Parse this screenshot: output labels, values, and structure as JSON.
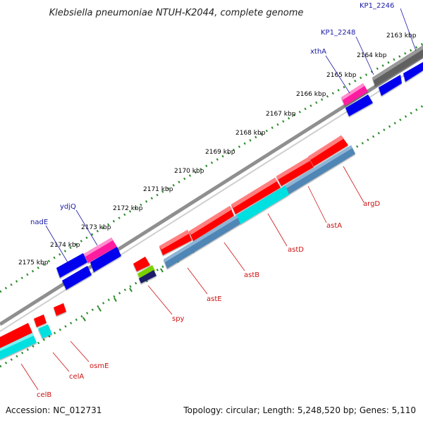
{
  "title": "Klebsiella pneumoniae NTUH-K2044, complete genome",
  "footer": {
    "accession": "Accession: NC_012731",
    "topology": "Topology: circular; Length: 5,248,520 bp; Genes: 5,110"
  },
  "ticks": [
    "2163 kbp",
    "2164 kbp",
    "2165 kbp",
    "2166 kbp",
    "2167 kbp",
    "2168 kbp",
    "2169 kbp",
    "2170 kbp",
    "2171 kbp",
    "2172 kbp",
    "2173 kbp",
    "2174 kbp",
    "2175 kbp"
  ],
  "upper_genes": [
    "KP1_2246",
    "KP1_2248",
    "xthA",
    "ydjQ",
    "nadE"
  ],
  "lower_genes": [
    "argD",
    "astA",
    "astD",
    "astB",
    "astE",
    "spy",
    "osmE",
    "celA",
    "celB"
  ],
  "colors": {
    "cds": "#ff0000",
    "blue_feature": "#0000ee",
    "pink_feature": "#ff1fa0",
    "cyan_feature": "#00e0e0",
    "steel_feature": "#4f86b5",
    "gray_feature": "#606060",
    "backbone": "#8f8f8f",
    "tick_dots": "#2a8a2a",
    "upper_label": "#1a1aa6",
    "lower_label": "#cc1111"
  }
}
